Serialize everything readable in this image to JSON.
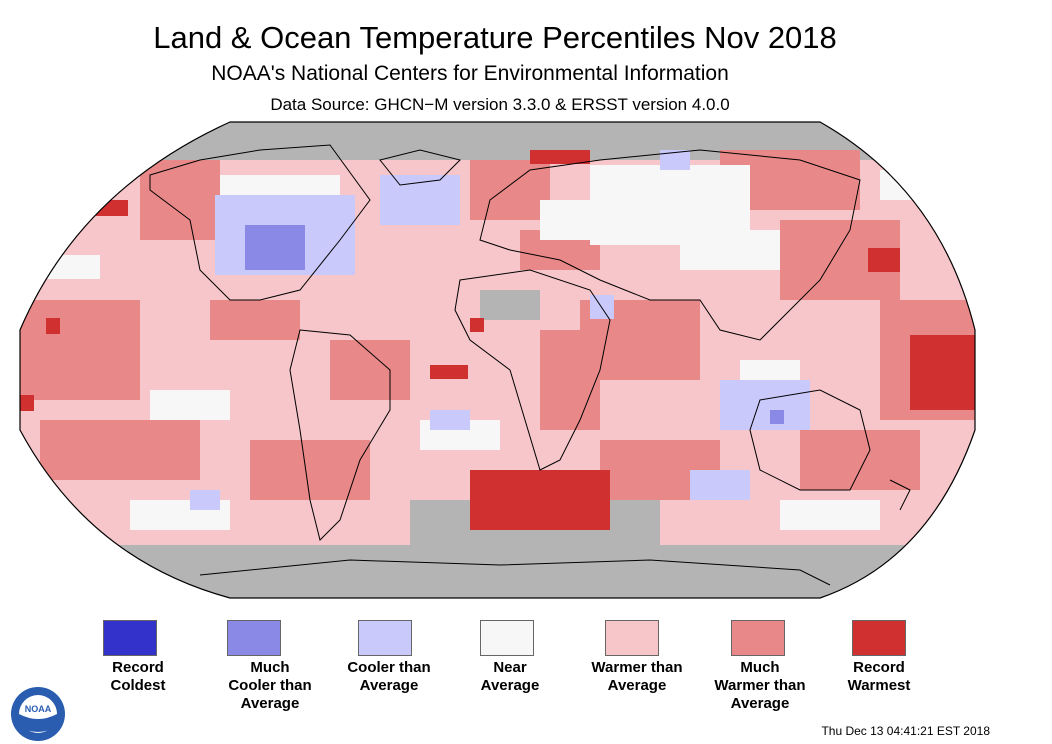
{
  "header": {
    "title": "Land & Ocean Temperature Percentiles Nov 2018",
    "subtitle": "NOAA's National Centers for Environmental Information",
    "source": "Data Source: GHCN−M version 3.3.0 & ERSST version 4.0.0"
  },
  "map": {
    "projection": "Robinson",
    "period": "Nov 2018",
    "palette": {
      "ocean_base": "#f6c6ca",
      "land_base": "#f6c6ca",
      "missing": "#b4b4b4",
      "coastline": "#000000"
    }
  },
  "legend": {
    "items": [
      {
        "label_line1": "Record",
        "label_line2": "Coldest",
        "label_line3": "",
        "color": "#3333cc"
      },
      {
        "label_line1": "Much",
        "label_line2": "Cooler than",
        "label_line3": "Average",
        "color": "#8a8ae6"
      },
      {
        "label_line1": "Cooler than",
        "label_line2": "Average",
        "label_line3": "",
        "color": "#c9c9fb"
      },
      {
        "label_line1": "Near",
        "label_line2": "Average",
        "label_line3": "",
        "color": "#f7f7f7"
      },
      {
        "label_line1": "Warmer than",
        "label_line2": "Average",
        "label_line3": "",
        "color": "#f7c6c8"
      },
      {
        "label_line1": "Much",
        "label_line2": "Warmer than",
        "label_line3": "Average",
        "color": "#e88888"
      },
      {
        "label_line1": "Record",
        "label_line2": "Warmest",
        "label_line3": "",
        "color": "#d03030"
      }
    ]
  },
  "footer": {
    "timestamp": "Thu Dec 13 04:41:21 EST 2018",
    "logo_text": "NOAA"
  }
}
